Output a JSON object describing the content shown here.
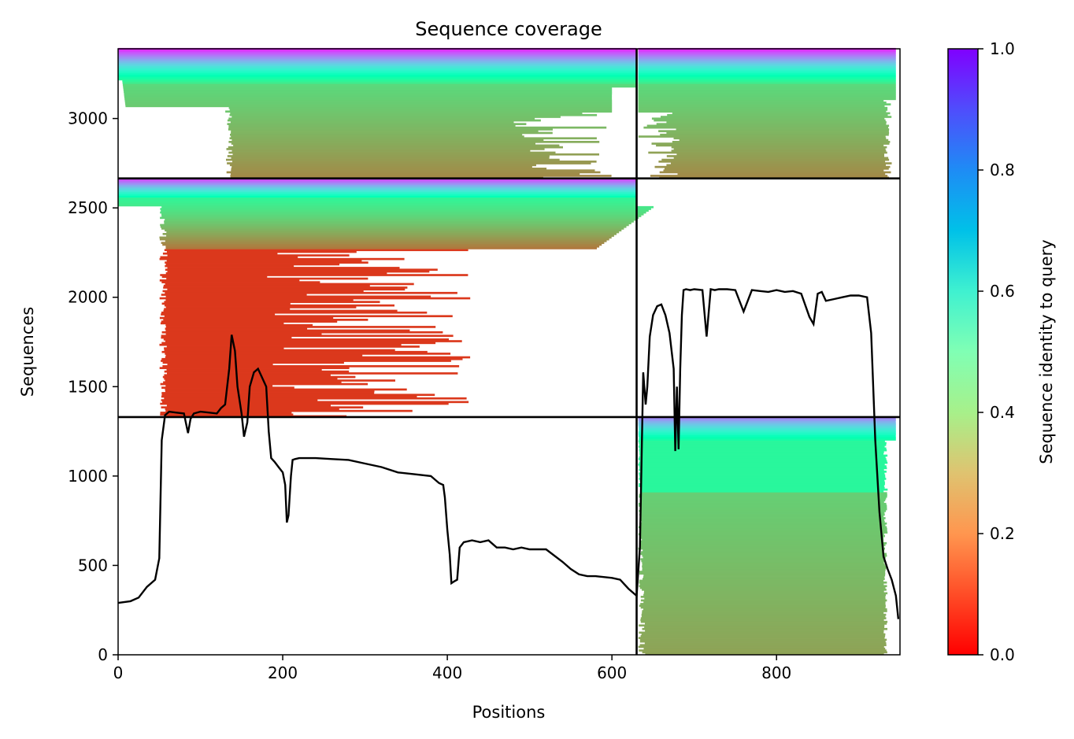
{
  "chart_data": {
    "type": "heatmap",
    "title": "Sequence coverage",
    "xlabel": "Positions",
    "ylabel": "Sequences",
    "xlim": [
      0,
      950
    ],
    "ylim": [
      0,
      3390
    ],
    "xticks": [
      0,
      200,
      400,
      600,
      800
    ],
    "yticks": [
      0,
      500,
      1000,
      1500,
      2000,
      2500,
      3000
    ],
    "colorbar": {
      "label": "Sequence identity to query",
      "colormap": "rainbow_r",
      "range": [
        0,
        1
      ],
      "ticks": [
        0.0,
        0.2,
        0.4,
        0.6,
        0.8,
        1.0
      ],
      "tick_labels": [
        "0.0",
        "0.2",
        "0.4",
        "0.6",
        "0.8",
        "1.0"
      ]
    },
    "block_boundaries": {
      "x": [
        630
      ],
      "y": [
        1330,
        2665
      ]
    },
    "coverage_line": {
      "color": "#000000",
      "x": [
        0,
        15,
        25,
        35,
        45,
        50,
        53,
        57,
        62,
        70,
        80,
        85,
        88,
        92,
        100,
        110,
        120,
        125,
        130,
        135,
        138,
        142,
        145,
        150,
        153,
        157,
        160,
        165,
        170,
        175,
        180,
        183,
        186,
        190,
        195,
        200,
        203,
        205,
        207,
        210,
        212,
        215,
        220,
        240,
        260,
        280,
        300,
        320,
        340,
        360,
        380,
        385,
        390,
        395,
        397,
        400,
        403,
        405,
        408,
        412,
        415,
        420,
        430,
        440,
        450,
        460,
        470,
        480,
        490,
        500,
        520,
        540,
        550,
        560,
        570,
        580,
        600,
        610,
        620,
        630,
        634,
        638,
        641,
        643,
        646,
        650,
        655,
        660,
        665,
        670,
        675,
        677,
        679,
        681,
        683,
        685,
        687,
        690,
        695,
        700,
        710,
        715,
        720,
        725,
        730,
        740,
        750,
        760,
        770,
        780,
        790,
        800,
        810,
        820,
        830,
        840,
        845,
        850,
        855,
        860,
        870,
        880,
        890,
        900,
        910,
        915,
        920,
        925,
        930,
        935,
        940,
        945,
        948
      ],
      "y": [
        290,
        300,
        320,
        380,
        420,
        540,
        1200,
        1340,
        1360,
        1355,
        1350,
        1240,
        1320,
        1350,
        1360,
        1355,
        1350,
        1380,
        1400,
        1600,
        1790,
        1700,
        1500,
        1350,
        1220,
        1300,
        1500,
        1580,
        1600,
        1550,
        1500,
        1250,
        1100,
        1080,
        1050,
        1020,
        950,
        740,
        780,
        1000,
        1090,
        1095,
        1100,
        1100,
        1095,
        1090,
        1070,
        1050,
        1020,
        1010,
        1000,
        980,
        960,
        950,
        880,
        700,
        560,
        400,
        410,
        420,
        600,
        630,
        640,
        630,
        640,
        600,
        600,
        590,
        600,
        590,
        590,
        520,
        480,
        450,
        440,
        440,
        430,
        420,
        370,
        330,
        600,
        1580,
        1400,
        1500,
        1780,
        1900,
        1950,
        1960,
        1900,
        1800,
        1600,
        1140,
        1500,
        1150,
        1600,
        1900,
        2040,
        2045,
        2040,
        2045,
        2040,
        1780,
        2045,
        2040,
        2045,
        2045,
        2040,
        1920,
        2040,
        2035,
        2030,
        2040,
        2030,
        2035,
        2020,
        1890,
        1850,
        2020,
        2030,
        1980,
        1990,
        2000,
        2010,
        2010,
        2000,
        1800,
        1200,
        800,
        550,
        480,
        420,
        330,
        200
      ]
    }
  }
}
